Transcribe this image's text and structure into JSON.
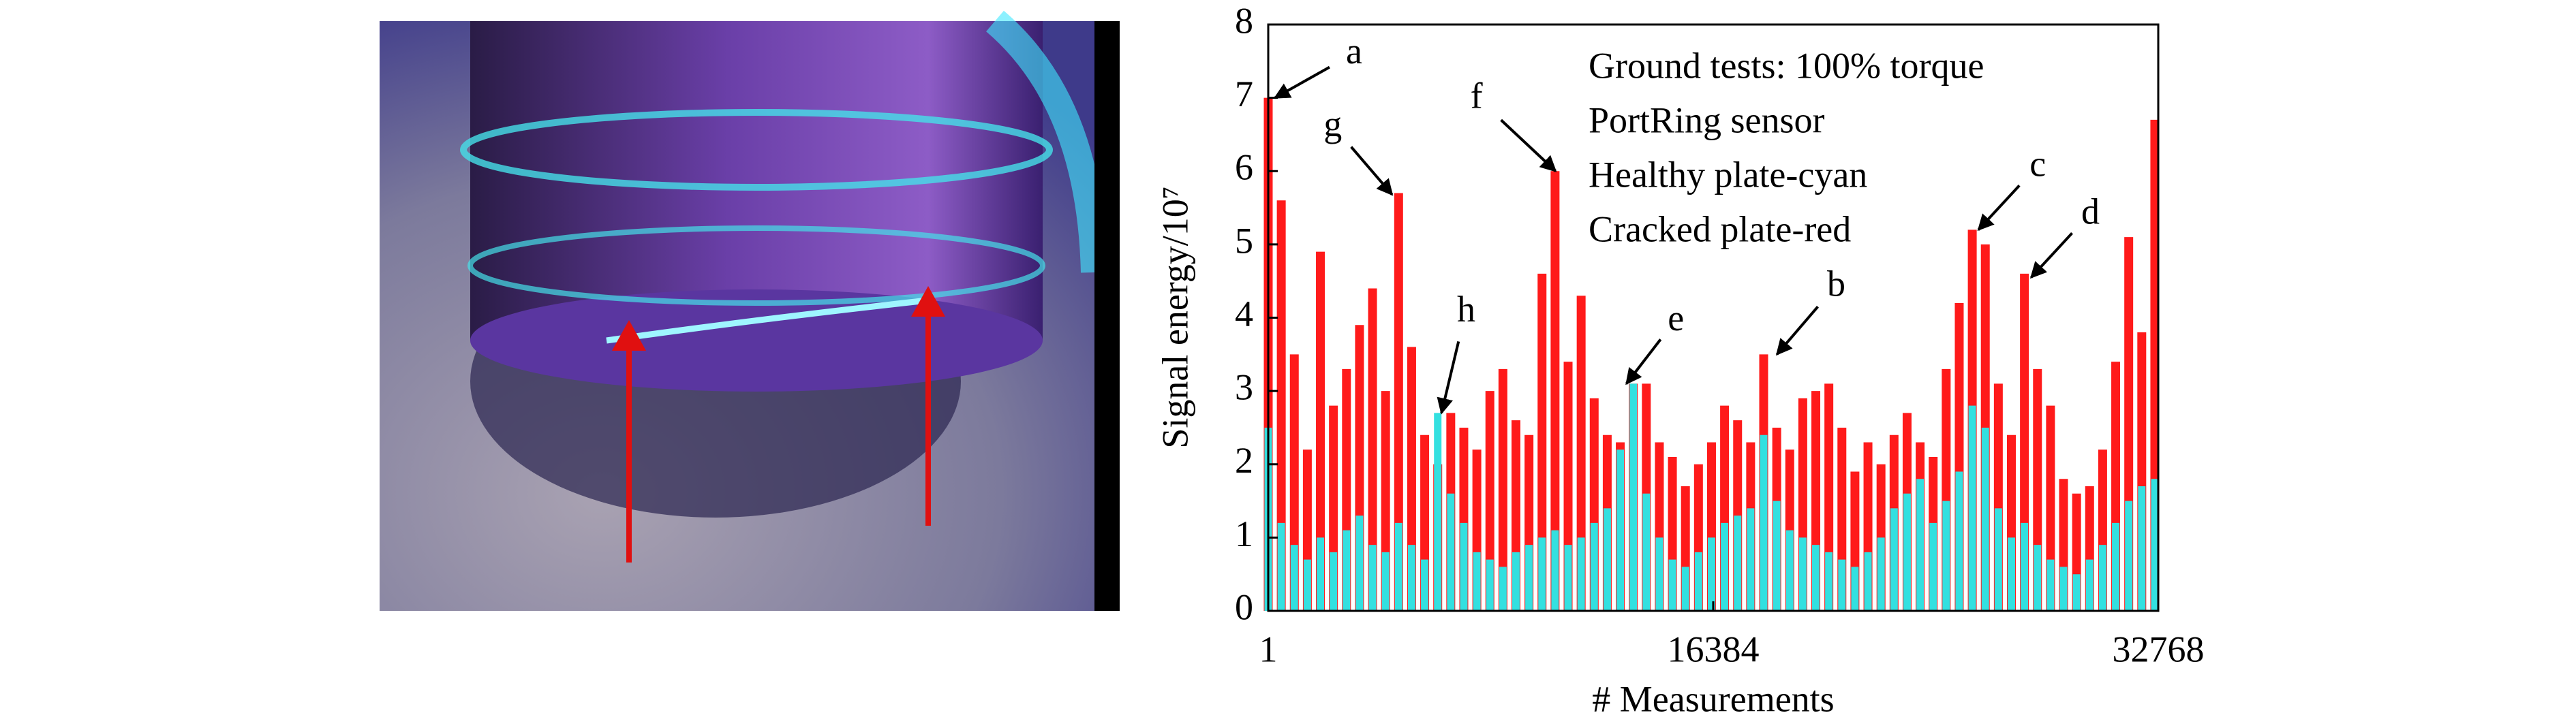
{
  "chart_data": {
    "type": "spike",
    "xlabel": "# Measurements",
    "ylabel": "Signal energy/10⁷",
    "notes": [
      "Ground tests: 100% torque",
      "PortRing sensor",
      "Healthy plate-cyan",
      "Cracked plate-red"
    ],
    "xlim": [
      1,
      32768
    ],
    "xticks": [
      1,
      16384,
      32768
    ],
    "ylim": [
      0,
      8
    ],
    "yticks": [
      0,
      1,
      2,
      3,
      4,
      5,
      6,
      7,
      8
    ],
    "x": [
      1,
      481,
      961,
      1441,
      1921,
      2401,
      2881,
      3361,
      3841,
      4321,
      4801,
      5281,
      5761,
      6241,
      6721,
      7201,
      7681,
      8161,
      8641,
      9121,
      9601,
      10081,
      10561,
      11041,
      11521,
      12001,
      12481,
      12961,
      13441,
      13921,
      14401,
      14881,
      15361,
      15841,
      16321,
      16801,
      17281,
      17761,
      18241,
      18721,
      19201,
      19681,
      20161,
      20641,
      21121,
      21601,
      22081,
      22561,
      23041,
      23521,
      24001,
      24481,
      24961,
      25441,
      25921,
      26401,
      26881,
      27361,
      27841,
      28321,
      28801,
      29281,
      29761,
      30241,
      30721,
      31201,
      31681,
      32161,
      32641
    ],
    "series": [
      {
        "name": "Cracked plate",
        "color": "#ff1a1a",
        "values": [
          7.0,
          5.6,
          3.5,
          2.2,
          4.9,
          2.8,
          3.3,
          3.9,
          4.4,
          3.0,
          5.7,
          3.6,
          2.4,
          2.0,
          2.7,
          2.5,
          2.2,
          3.0,
          3.3,
          2.6,
          2.4,
          4.6,
          6.0,
          3.4,
          4.3,
          2.9,
          2.4,
          2.3,
          3.1,
          3.1,
          2.3,
          2.1,
          1.7,
          2.0,
          2.3,
          2.8,
          2.6,
          2.3,
          3.5,
          2.5,
          2.2,
          2.9,
          3.0,
          3.1,
          2.5,
          1.9,
          2.3,
          2.0,
          2.4,
          2.7,
          2.3,
          2.1,
          3.3,
          4.2,
          5.2,
          5.0,
          3.1,
          2.4,
          4.6,
          3.3,
          2.8,
          1.8,
          1.6,
          1.7,
          2.2,
          3.4,
          5.1,
          3.8,
          6.7
        ]
      },
      {
        "name": "Healthy plate",
        "color": "#33e0e0",
        "values": [
          2.5,
          1.2,
          0.9,
          0.7,
          1.0,
          0.8,
          1.1,
          1.3,
          0.9,
          0.8,
          1.2,
          0.9,
          0.7,
          2.7,
          1.6,
          1.2,
          0.8,
          0.7,
          0.6,
          0.8,
          0.9,
          1.0,
          1.1,
          0.9,
          1.0,
          1.2,
          1.4,
          2.2,
          3.1,
          1.6,
          1.0,
          0.7,
          0.6,
          0.8,
          1.0,
          1.2,
          1.3,
          1.4,
          2.4,
          1.5,
          1.1,
          1.0,
          0.9,
          0.8,
          0.7,
          0.6,
          0.8,
          1.0,
          1.4,
          1.6,
          1.8,
          1.2,
          1.5,
          1.9,
          2.8,
          2.5,
          1.4,
          1.0,
          1.2,
          0.9,
          0.7,
          0.6,
          0.5,
          0.7,
          0.9,
          1.2,
          1.5,
          1.7,
          1.8
        ]
      }
    ],
    "annotations": [
      {
        "text": "a",
        "x": 250,
        "y": 7.0
      },
      {
        "text": "g",
        "x": 4560,
        "y": 5.68
      },
      {
        "text": "h",
        "x": 6380,
        "y": 2.7
      },
      {
        "text": "f",
        "x": 10580,
        "y": 6.0
      },
      {
        "text": "e",
        "x": 13190,
        "y": 3.1
      },
      {
        "text": "b",
        "x": 18730,
        "y": 3.5
      },
      {
        "text": "c",
        "x": 26150,
        "y": 5.2
      },
      {
        "text": "d",
        "x": 28090,
        "y": 4.55
      }
    ]
  }
}
